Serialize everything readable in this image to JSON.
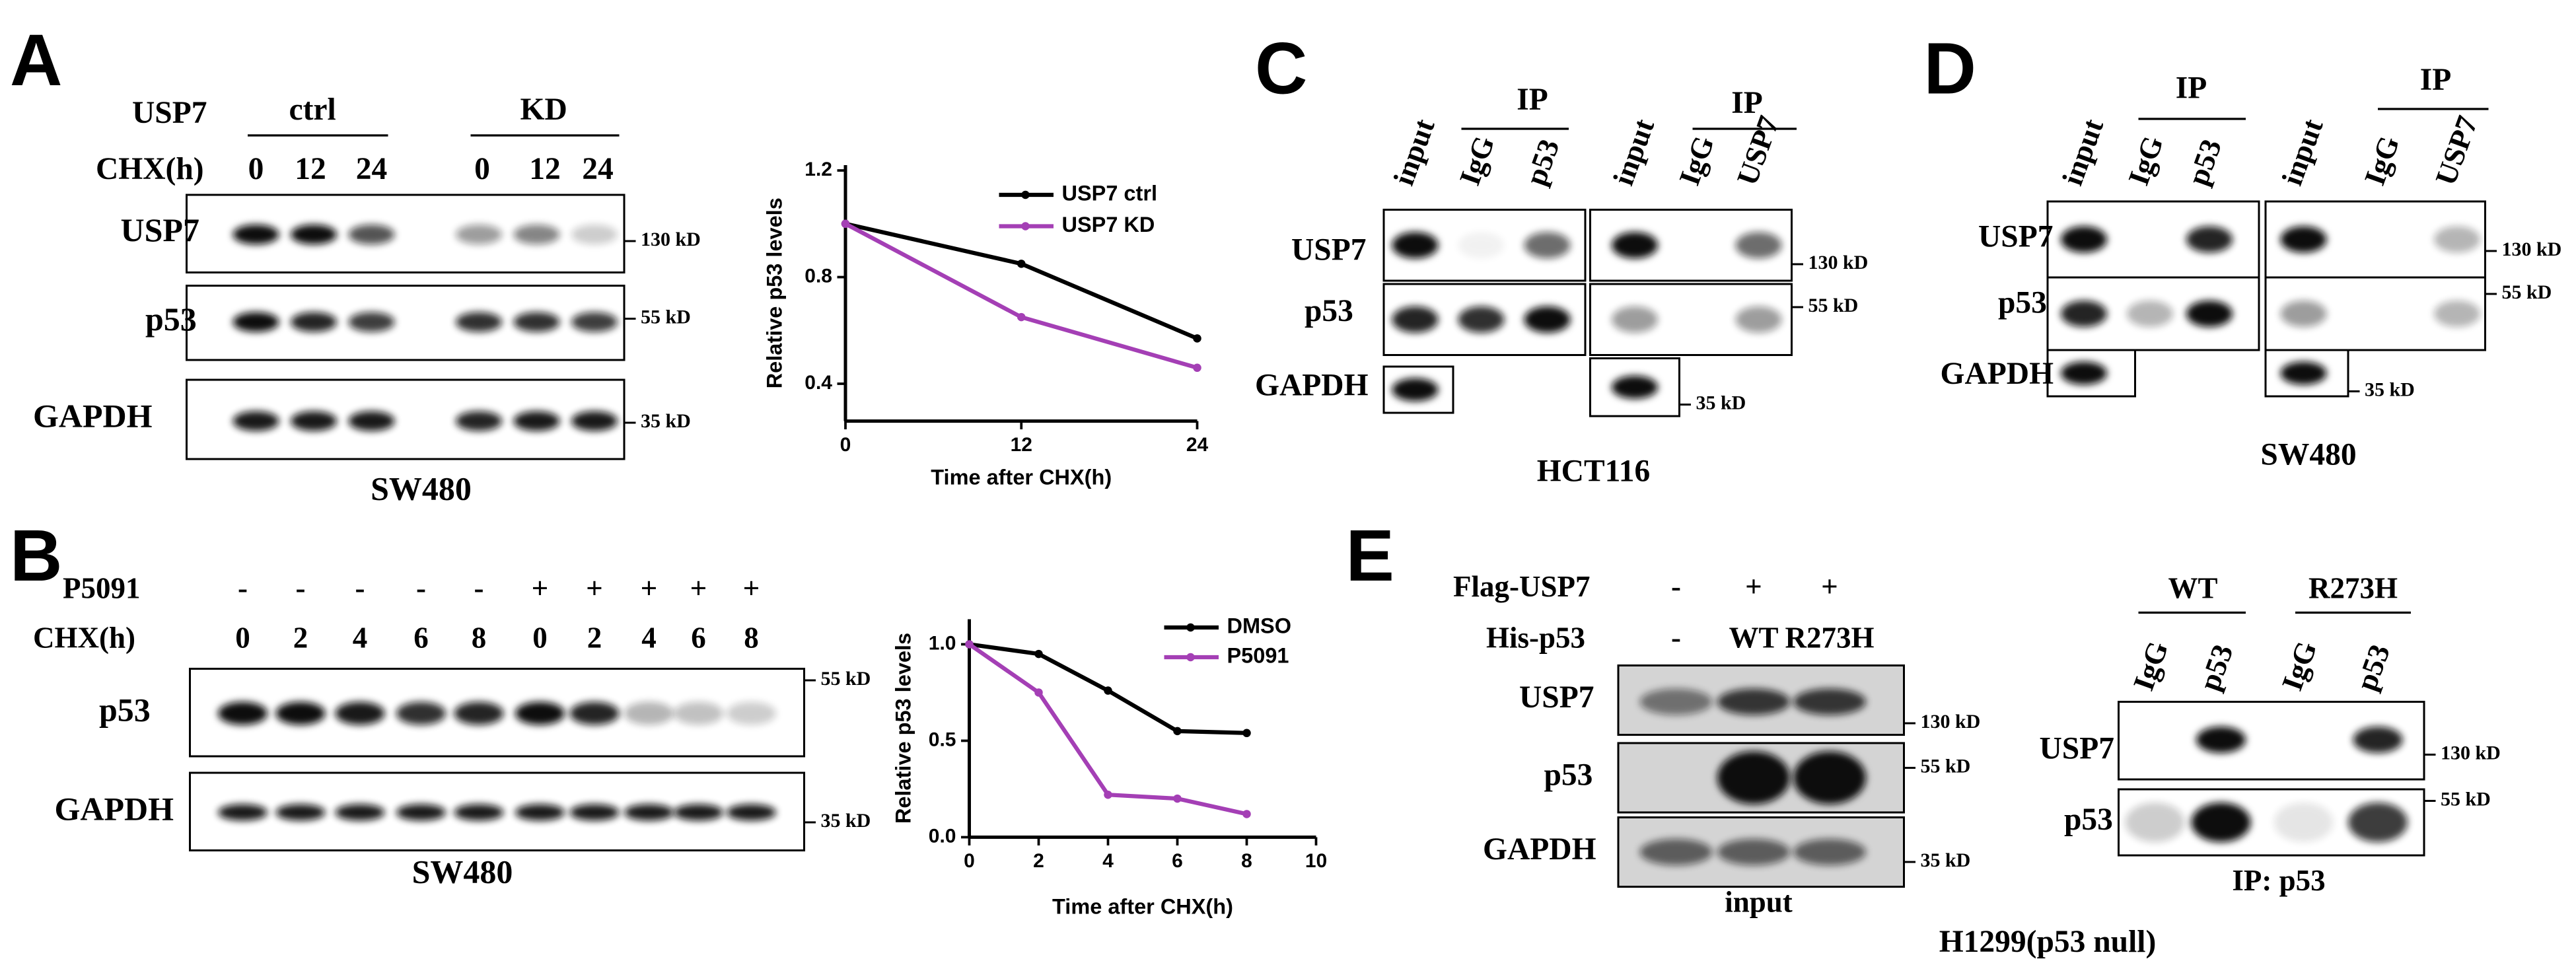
{
  "panel_a": {
    "letter": "A",
    "target": "USP7",
    "groups": [
      "ctrl",
      "KD"
    ],
    "treatment": "CHX(h)",
    "lanes": [
      "0",
      "12",
      "24",
      "0",
      "12",
      "24"
    ],
    "rows": [
      "USP7",
      "p53",
      "GAPDH"
    ],
    "markers": [
      "130 kD",
      "55 kD",
      "35 kD"
    ],
    "cell_line": "SW480"
  },
  "panel_b": {
    "letter": "B",
    "treatment": "P5091",
    "treatment_lanes": [
      "-",
      "-",
      "-",
      "-",
      "-",
      "+",
      "+",
      "+",
      "+",
      "+"
    ],
    "time_label": "CHX(h)",
    "lanes": [
      "0",
      "2",
      "4",
      "6",
      "8",
      "0",
      "2",
      "4",
      "6",
      "8"
    ],
    "rows": [
      "p53",
      "GAPDH"
    ],
    "markers": [
      "55 kD",
      "35 kD"
    ],
    "cell_line": "SW480"
  },
  "panel_c": {
    "letter": "C",
    "blots": [
      {
        "ip": "IP",
        "lanes": [
          "input",
          "IgG",
          "p53"
        ]
      },
      {
        "ip": "IP",
        "lanes": [
          "input",
          "IgG",
          "USP7"
        ]
      }
    ],
    "rows": [
      "USP7",
      "p53",
      "GAPDH"
    ],
    "markers": [
      "130 kD",
      "55 kD",
      "35 kD"
    ],
    "cell_line": "HCT116"
  },
  "panel_d": {
    "letter": "D",
    "blots": [
      {
        "ip": "IP",
        "lanes": [
          "input",
          "IgG",
          "p53"
        ]
      },
      {
        "ip": "IP",
        "lanes": [
          "input",
          "IgG",
          "USP7"
        ]
      }
    ],
    "rows": [
      "USP7",
      "p53",
      "GAPDH"
    ],
    "markers": [
      "130 kD",
      "55 kD",
      "35 kD"
    ],
    "cell_line": "SW480"
  },
  "panel_e": {
    "letter": "E",
    "rows_top": [
      "Flag-USP7",
      "His-p53"
    ],
    "flag_lanes": [
      "-",
      "+",
      "+"
    ],
    "his_lanes": [
      "-",
      "WT",
      "R273H"
    ],
    "input_rows": [
      "USP7",
      "p53",
      "GAPDH"
    ],
    "input_markers": [
      "130 kD",
      "55 kD",
      "35 kD"
    ],
    "input_label": "input",
    "ip_groups": [
      "WT",
      "R273H"
    ],
    "ip_lanes": [
      "IgG",
      "p53",
      "IgG",
      "p53"
    ],
    "ip_rows": [
      "USP7",
      "p53"
    ],
    "ip_markers": [
      "130 kD",
      "55 kD"
    ],
    "ip_label": "IP: p53",
    "cell_line": "H1299(p53 null)"
  },
  "chart_data": [
    {
      "type": "line",
      "ylabel": "Relative p53 levels",
      "xlabel": "Time after CHX(h)",
      "x": [
        0,
        12,
        24
      ],
      "series": [
        {
          "name": "USP7 ctrl",
          "color": "#000000",
          "values": [
            1,
            0.85,
            0.57
          ]
        },
        {
          "name": "USP7 KD",
          "color": "#a43fb5",
          "values": [
            1,
            0.65,
            0.46
          ]
        }
      ],
      "xlim": [
        0,
        24
      ],
      "xticks": [
        0,
        12,
        24
      ],
      "ylim": [
        0.26,
        1.22
      ],
      "yticks": [
        0.4,
        0.8,
        1.2
      ]
    },
    {
      "type": "line",
      "ylabel": "Relative p53 levels",
      "xlabel": "Time after CHX(h)",
      "x": [
        0,
        2,
        4,
        6,
        8
      ],
      "series": [
        {
          "name": "DMSO",
          "color": "#000000",
          "values": [
            1,
            0.95,
            0.76,
            0.55,
            0.54
          ]
        },
        {
          "name": "P5091",
          "color": "#a43fb5",
          "values": [
            1,
            0.75,
            0.22,
            0.2,
            0.12
          ]
        }
      ],
      "xlim": [
        0,
        10
      ],
      "xticks": [
        0,
        2,
        4,
        6,
        8,
        10
      ],
      "ylim": [
        0,
        1.13
      ],
      "yticks": [
        {
          "value": 0,
          "label": "0.0"
        },
        0.5,
        {
          "value": 1,
          "label": "1.0"
        }
      ]
    }
  ]
}
